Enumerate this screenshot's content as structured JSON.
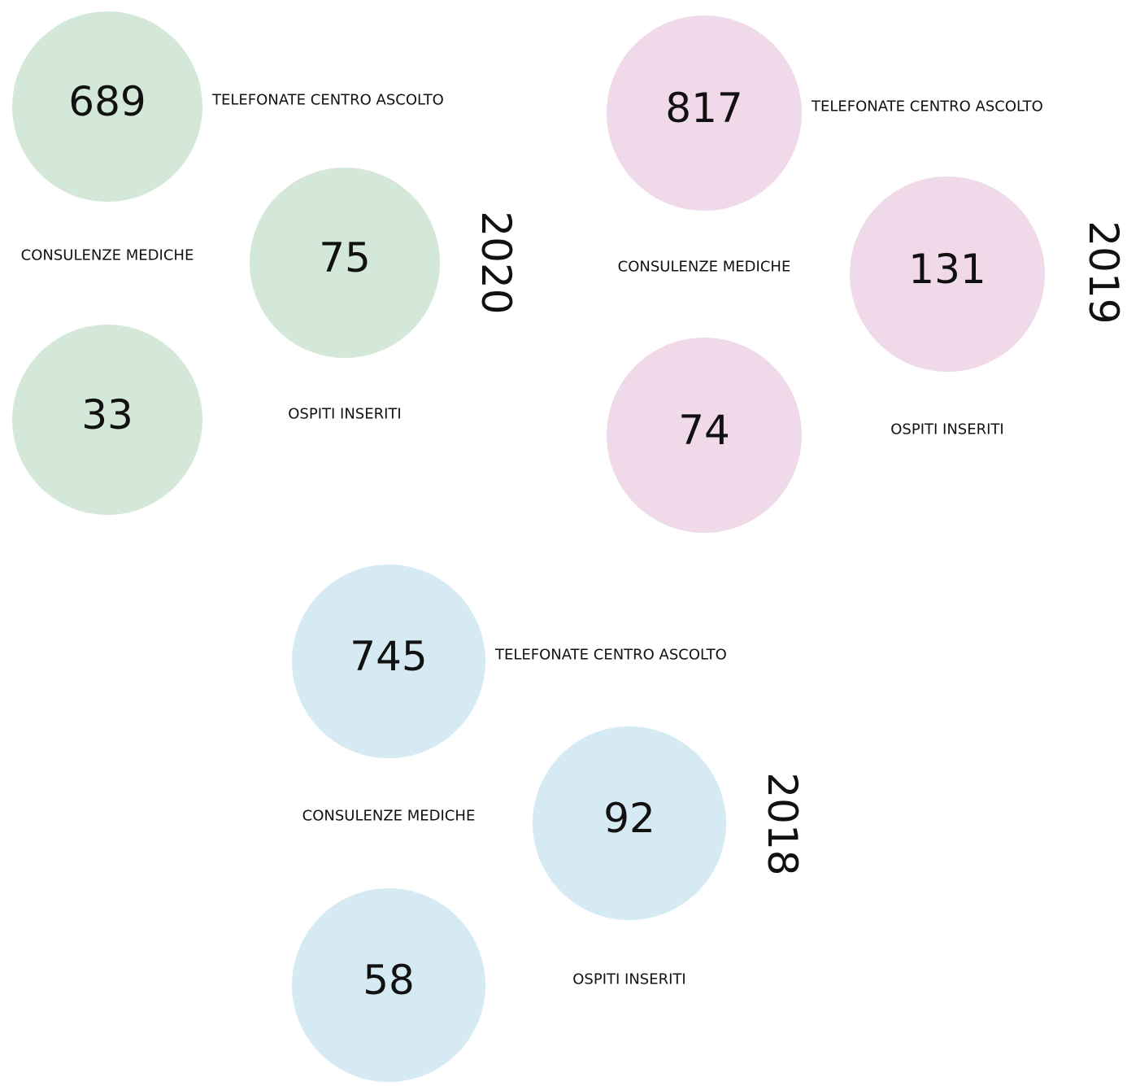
{
  "groups": [
    {
      "year": "2020",
      "color": "#d4e8d9",
      "items": [
        {
          "label": "TELEFONATE CENTRO ASCOLTO",
          "value": "689"
        },
        {
          "label": "CONSULENZE MEDICHE",
          "value": "75"
        },
        {
          "label": "OSPITI INSERITI",
          "value": "33"
        }
      ]
    },
    {
      "year": "2019",
      "color": "#f0d9e8",
      "items": [
        {
          "label": "TELEFONATE CENTRO ASCOLTO",
          "value": "817"
        },
        {
          "label": "CONSULENZE MEDICHE",
          "value": "131"
        },
        {
          "label": "OSPITI INSERITI",
          "value": "74"
        }
      ]
    },
    {
      "year": "2018",
      "color": "#d5eaf3",
      "items": [
        {
          "label": "TELEFONATE CENTRO ASCOLTO",
          "value": "745"
        },
        {
          "label": "CONSULENZE MEDICHE",
          "value": "92"
        },
        {
          "label": "OSPITI INSERITI",
          "value": "58"
        }
      ]
    }
  ]
}
